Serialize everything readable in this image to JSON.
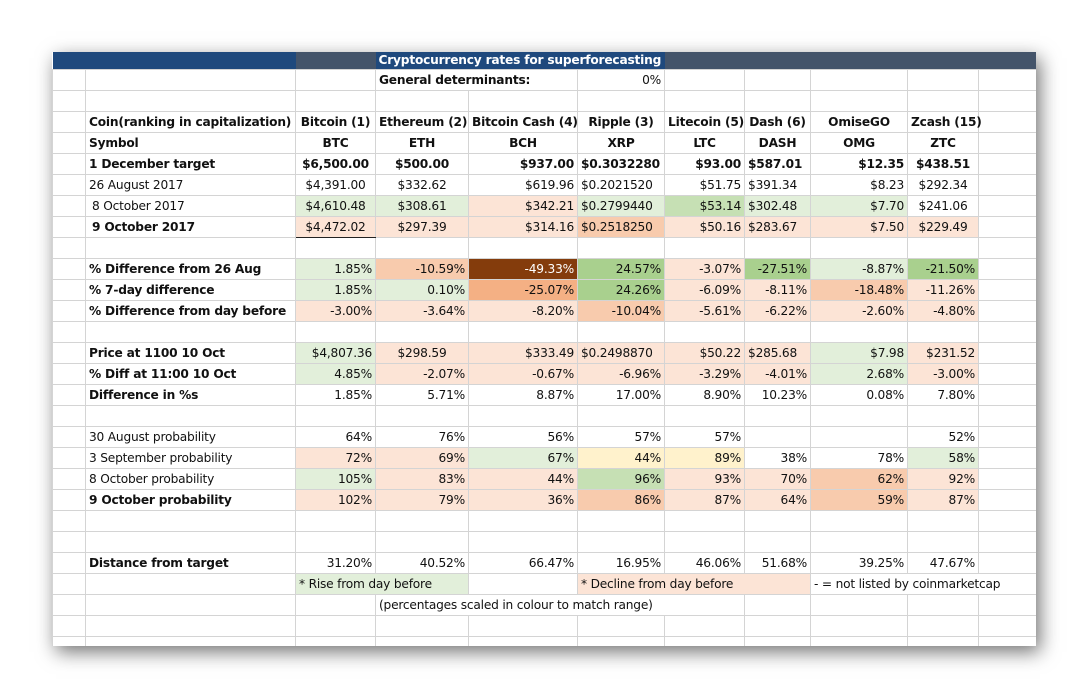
{
  "title": "Cryptocurrency rates for superforecasting",
  "general": {
    "label": "General determinants:",
    "value": "0%"
  },
  "header_row": {
    "label": "Coin(ranking in capitalization)",
    "coins": [
      "Bitcoin (1)",
      "Ethereum (2)",
      "Bitcoin Cash (4)",
      "Ripple (3)",
      "Litecoin (5)",
      "Dash (6)",
      "OmiseGO",
      "Zcash (15)"
    ]
  },
  "symbol_row": {
    "label": "Symbol",
    "values": [
      "BTC",
      "ETH",
      "BCH",
      "XRP",
      "LTC",
      "DASH",
      "OMG",
      "ZTC"
    ]
  },
  "rows": {
    "dec_target": {
      "label": "1 December target",
      "values": [
        "$6,500.00",
        "$500.00",
        "$937.00",
        "$0.3032280",
        "$93.00",
        "$587.01",
        "$12.35",
        "$438.51"
      ]
    },
    "aug26": {
      "label": "26 August 2017",
      "values": [
        "$4,391.00",
        "$332.62",
        "$619.96",
        "$0.2021520",
        "$51.75",
        "$391.34",
        "$8.23",
        "$292.34"
      ]
    },
    "oct8": {
      "label": "8 October 2017",
      "values": [
        "$4,610.48",
        "$308.61",
        "$342.21",
        "$0.2799440",
        "$53.14",
        "$302.48",
        "$7.70",
        "$241.06"
      ]
    },
    "oct9": {
      "label": "9 October 2017",
      "values": [
        "$4,472.02",
        "$297.39",
        "$314.16",
        "$0.2518250",
        "$50.16",
        "$283.67",
        "$7.50",
        "$229.49"
      ]
    },
    "diff_aug": {
      "label": "% Difference from  26 Aug",
      "values": [
        "1.85%",
        "-10.59%",
        "-49.33%",
        "24.57%",
        "-3.07%",
        "-27.51%",
        "-8.87%",
        "-21.50%"
      ]
    },
    "diff_7day": {
      "label": "% 7-day difference",
      "values": [
        "1.85%",
        "0.10%",
        "-25.07%",
        "24.26%",
        "-6.09%",
        "-8.11%",
        "-18.48%",
        "-11.26%"
      ]
    },
    "diff_day": {
      "label": "% Difference from day before",
      "values": [
        "-3.00%",
        "-3.64%",
        "-8.20%",
        "-10.04%",
        "-5.61%",
        "-6.22%",
        "-2.60%",
        "-4.80%"
      ]
    },
    "price_1100": {
      "label": "Price at 1100 10 Oct",
      "values": [
        "$4,807.36",
        "$298.59",
        "$333.49",
        "$0.2498870",
        "$50.22",
        "$285.68",
        "$7.98",
        "$231.52"
      ]
    },
    "diff_1100": {
      "label": "% Diff at 11:00 10 Oct",
      "values": [
        "4.85%",
        "-2.07%",
        "-0.67%",
        "-6.96%",
        "-3.29%",
        "-4.01%",
        "2.68%",
        "-3.00%"
      ]
    },
    "diff_pct": {
      "label": "Difference in %s",
      "values": [
        "1.85%",
        "5.71%",
        "8.87%",
        "17.00%",
        "8.90%",
        "10.23%",
        "0.08%",
        "7.80%"
      ]
    },
    "prob_aug30": {
      "label": "30 August  probability",
      "values": [
        "64%",
        "76%",
        "56%",
        "57%",
        "57%",
        "",
        "",
        "52%"
      ]
    },
    "prob_sep3": {
      "label": "3 September probability",
      "values": [
        "72%",
        "69%",
        "67%",
        "44%",
        "89%",
        "38%",
        "78%",
        "58%"
      ]
    },
    "prob_oct8": {
      "label": "8 October probability",
      "values": [
        "105%",
        "83%",
        "44%",
        "96%",
        "93%",
        "70%",
        "62%",
        "92%"
      ]
    },
    "prob_oct9": {
      "label": "9 October probability",
      "values": [
        "102%",
        "79%",
        "36%",
        "86%",
        "87%",
        "64%",
        "59%",
        "87%"
      ]
    },
    "distance": {
      "label": "Distance from target",
      "values": [
        "31.20%",
        "40.52%",
        "66.47%",
        "16.95%",
        "46.06%",
        "51.68%",
        "39.25%",
        "47.67%"
      ]
    }
  },
  "legend": {
    "rise": "* Rise from day before",
    "decline": "* Decline from day before",
    "not_listed": "- = not listed by coinmarketcap",
    "scale_note": "(percentages scaled in colour to match range)"
  },
  "colors": {
    "header_blue": "#1f497d",
    "header_slate": "#44546a",
    "green_light": "#e2efda",
    "green_mid": "#c6e0b4",
    "green_strong": "#a9d08e",
    "orange_light": "#fce4d6",
    "orange_mid": "#f8cbad",
    "orange_strong": "#f4b084",
    "brown_dark": "#843c0c",
    "yellow_light": "#fff2cc"
  }
}
